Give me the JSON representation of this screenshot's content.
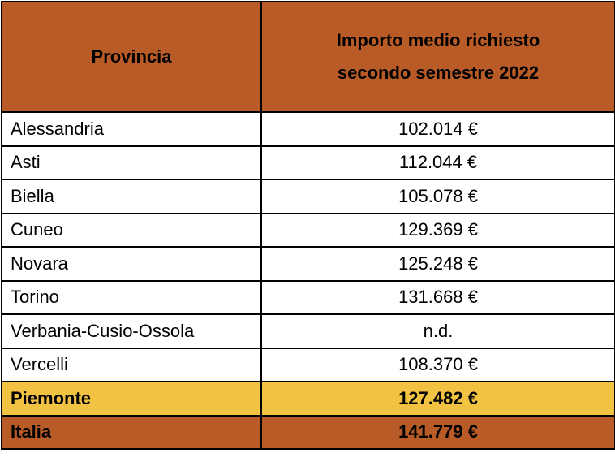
{
  "header": {
    "col_provincia": "Provincia",
    "col_importo_line1": "Importo medio richiesto",
    "col_importo_line2": "secondo semestre 2022"
  },
  "rows": [
    {
      "provincia": "Alessandria",
      "importo": "102.014 €"
    },
    {
      "provincia": "Asti",
      "importo": "112.044 €"
    },
    {
      "provincia": "Biella",
      "importo": "105.078 €"
    },
    {
      "provincia": "Cuneo",
      "importo": "129.369 €"
    },
    {
      "provincia": "Novara",
      "importo": "125.248 €"
    },
    {
      "provincia": "Torino",
      "importo": "131.668 €"
    },
    {
      "provincia": "Verbania-Cusio-Ossola",
      "importo": "n.d."
    },
    {
      "provincia": "Vercelli",
      "importo": "108.370 €"
    }
  ],
  "totale_regione": {
    "label": "Piemonte",
    "importo": "127.482 €"
  },
  "totale_nazione": {
    "label": "Italia",
    "importo": "141.779 €"
  },
  "colors": {
    "header_bg": "#b85b27",
    "regione_bg": "#f2c342",
    "nazione_bg": "#b85b27",
    "border": "#000000"
  }
}
